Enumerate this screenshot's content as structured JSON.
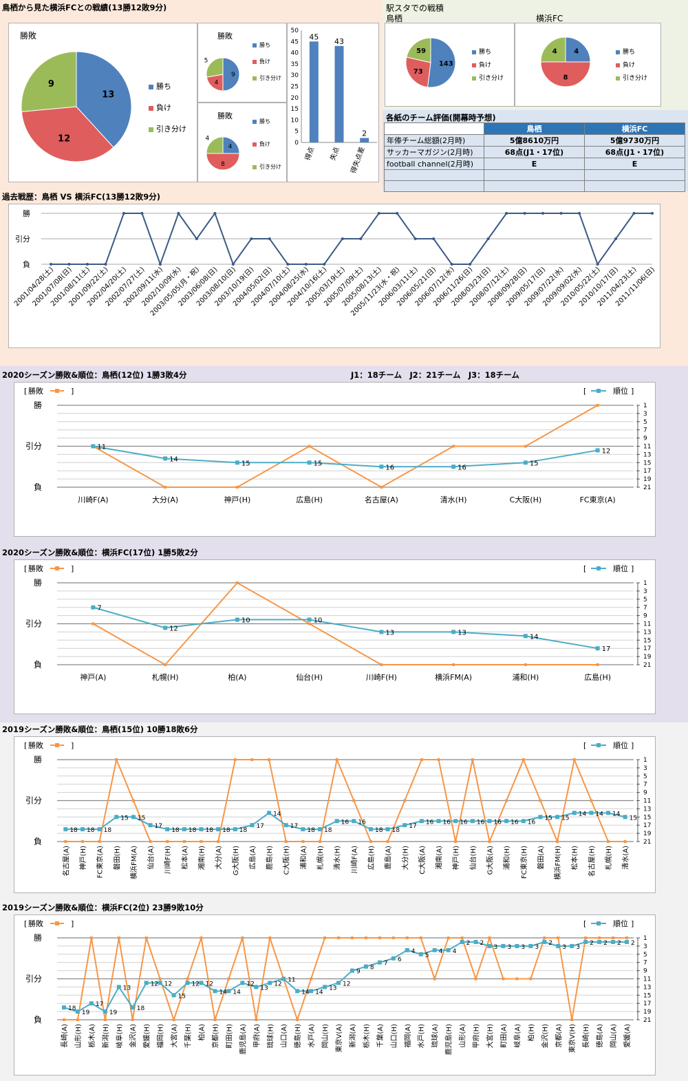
{
  "colors": {
    "win": "#4f81bd",
    "loss": "#e05d5d",
    "draw": "#9bbb59",
    "line": "#3b5a84",
    "rank": "#4bacc6",
    "result": "#f79646",
    "bar": "#4f81bd"
  },
  "h2h": {
    "title": "鳥栖から見た横浜FCとの戦績(13勝12敗9分)",
    "main_pie": {
      "title": "勝敗",
      "legend": [
        "勝ち",
        "負け",
        "引き分け"
      ]
    },
    "pie_a": {
      "title": "勝敗",
      "legend": [
        "勝ち",
        "負け",
        "引き分け"
      ]
    },
    "pie_b": {
      "title": "勝敗",
      "legend": [
        "勝ち",
        "負け",
        "引き分け"
      ]
    }
  },
  "stadium": {
    "title": "駅スタでの戦積",
    "label_left": "鳥栖",
    "label_right": "横浜FC",
    "legend": [
      "勝ち",
      "負け",
      "引き分け"
    ]
  },
  "eval": {
    "title": "各紙のチーム評価(開幕時予想)",
    "headers": [
      "",
      "鳥栖",
      "横浜FC"
    ],
    "rows": [
      [
        "年俸チーム総額(2月時)",
        "5億8610万円",
        "5億9730万円"
      ],
      [
        "サッカーマガジン(2月時)",
        "68点(J1・17位)",
        "68点(J1・17位)"
      ],
      [
        "football channel(2月時)",
        "E",
        "E"
      ],
      [
        "",
        "",
        ""
      ],
      [
        "",
        "",
        ""
      ]
    ]
  },
  "history": {
    "title": "過去戦歴：鳥栖 VS 横浜FC(13勝12敗9分)",
    "ylabels": [
      "勝",
      "引分",
      "負"
    ]
  },
  "season": {
    "s1_title": "2020シーズン勝敗&順位：鳥栖(12位) 1勝3敗4分",
    "s1_note": "J1：18チーム　J2：21チーム　J3：18チーム",
    "s2_title": "2020シーズン勝敗&順位：横浜FC(17位) 1勝5敗2分",
    "s3_title": "2019シーズン勝敗&順位：鳥栖(15位) 10勝18敗6分",
    "s4_title": "2019シーズン勝敗&順位：横浜FC(2位) 23勝9敗10分",
    "legend_left": "勝敗",
    "legend_right": "順位",
    "ylabels": [
      "勝",
      "引分",
      "負"
    ],
    "rank_ticks": [
      "1",
      "3",
      "5",
      "7",
      "9",
      "11",
      "13",
      "15",
      "17",
      "19",
      "21"
    ]
  },
  "chart_data": [
    {
      "type": "pie",
      "title": "勝敗",
      "categories": [
        "勝ち",
        "負け",
        "引き分け"
      ],
      "values": [
        13,
        12,
        9
      ]
    },
    {
      "type": "pie",
      "title": "勝敗",
      "categories": [
        "勝ち",
        "負け",
        "引き分け"
      ],
      "values": [
        9,
        4,
        5
      ]
    },
    {
      "type": "pie",
      "title": "勝敗",
      "categories": [
        "勝ち",
        "負け",
        "引き分け"
      ],
      "values": [
        4,
        8,
        4
      ]
    },
    {
      "type": "bar",
      "categories": [
        "得点",
        "失点",
        "得失点差"
      ],
      "values": [
        45,
        43,
        2
      ],
      "ylim": [
        0,
        50
      ],
      "yticks": [
        0,
        5,
        10,
        15,
        20,
        25,
        30,
        35,
        40,
        45,
        50
      ]
    },
    {
      "type": "pie",
      "title": "鳥栖",
      "categories": [
        "勝ち",
        "負け",
        "引き分け"
      ],
      "values": [
        143,
        73,
        59
      ]
    },
    {
      "type": "pie",
      "title": "横浜FC",
      "categories": [
        "勝ち",
        "負け",
        "引き分け"
      ],
      "values": [
        4,
        8,
        4
      ]
    },
    {
      "type": "line",
      "title": "過去戦歴：鳥栖 VS 横浜FC(13勝12敗9分)",
      "categories": [
        "2001/04/28(土)",
        "2001/07/08(日)",
        "2001/08/11(土)",
        "2001/09/22(土)",
        "2002/04/20(土)",
        "2002/07/27(土)",
        "2002/09/11(水)",
        "2002/10/09(水)",
        "2003/05/05(月・祝)",
        "2003/06/08(日)",
        "2003/08/10(日)",
        "2003/10/19(日)",
        "2004/05/02(日)",
        "2004/07/10(土)",
        "2004/08/25(水)",
        "2004/10/16(土)",
        "2005/03/19(土)",
        "2005/07/09(土)",
        "2005/08/13(土)",
        "2005/11/23(水・祝)",
        "2006/03/11(土)",
        "2006/05/21(日)",
        "2006/07/12(水)",
        "2006/11/26(日)",
        "2008/03/23(日)",
        "2008/07/12(土)",
        "2008/09/28(日)",
        "2009/05/17(日)",
        "2009/07/22(水)",
        "2009/09/02(水)",
        "2010/05/22(土)",
        "2010/10/17(日)",
        "2011/04/23(土)",
        "2011/11/06(日)"
      ],
      "values": [
        0,
        0,
        0,
        0,
        2,
        2,
        0,
        2,
        1,
        2,
        0,
        1,
        1,
        0,
        0,
        0,
        1,
        1,
        2,
        2,
        1,
        1,
        0,
        0,
        1,
        2,
        2,
        2,
        2,
        2,
        0,
        1,
        2,
        2
      ],
      "yticks": [
        "負",
        "引分",
        "勝"
      ]
    },
    {
      "type": "line",
      "title": "2020シーズン勝敗&順位：鳥栖(12位) 1勝3敗4分",
      "categories": [
        "川崎F(A)",
        "大分(A)",
        "神戸(H)",
        "広島(H)",
        "名古屋(A)",
        "清水(H)",
        "C大阪(H)",
        "FC東京(A)"
      ],
      "series": [
        {
          "name": "勝敗",
          "values": [
            1,
            0,
            0,
            1,
            0,
            1,
            1,
            2
          ]
        },
        {
          "name": "順位",
          "values": [
            11,
            14,
            15,
            15,
            16,
            16,
            15,
            12
          ]
        }
      ]
    },
    {
      "type": "line",
      "title": "2020シーズン勝敗&順位：横浜FC(17位) 1勝5敗2分",
      "categories": [
        "神戸(A)",
        "札幌(H)",
        "柏(A)",
        "仙台(H)",
        "川崎F(H)",
        "横浜FM(A)",
        "浦和(H)",
        "広島(H)"
      ],
      "series": [
        {
          "name": "勝敗",
          "values": [
            1,
            0,
            2,
            1,
            0,
            0,
            0,
            0
          ]
        },
        {
          "name": "順位",
          "values": [
            7,
            12,
            10,
            10,
            13,
            13,
            14,
            17
          ]
        }
      ]
    },
    {
      "type": "line",
      "title": "2019シーズン勝敗&順位：鳥栖(15位) 10勝18敗6分",
      "categories": [
        "名古屋(A)",
        "神戸(H)",
        "FC東京(A)",
        "磐田(H)",
        "横浜FM(A)",
        "仙台(A)",
        "川崎F(H)",
        "松本(A)",
        "湘南(H)",
        "大分(A)",
        "G大阪(H)",
        "広島(A)",
        "鹿島(H)",
        "C大阪(H)",
        "浦和(A)",
        "札幌(H)",
        "清水(H)",
        "川崎F(A)",
        "広島(H)",
        "鹿島(A)",
        "大分(H)",
        "C大阪(A)",
        "湘南(A)",
        "神戸(H)",
        "仙台(H)",
        "G大阪(A)",
        "浦和(H)",
        "FC東京(H)",
        "磐田(A)",
        "横浜FM(H)",
        "松本(H)",
        "名古屋(H)",
        "札幌(H)",
        "清水(A)"
      ],
      "series": [
        {
          "name": "勝敗",
          "values": [
            0,
            0,
            0,
            2,
            1,
            0,
            0,
            0,
            0,
            0,
            2,
            2,
            2,
            0,
            0,
            0,
            2,
            1,
            0,
            0,
            1,
            2,
            2,
            0,
            2,
            0,
            1,
            2,
            1,
            0,
            2,
            1,
            0,
            0
          ]
        },
        {
          "name": "順位",
          "values": [
            18,
            18,
            18,
            15,
            15,
            17,
            18,
            18,
            18,
            18,
            18,
            17,
            14,
            17,
            18,
            18,
            16,
            16,
            18,
            18,
            17,
            16,
            16,
            16,
            16,
            16,
            16,
            16,
            15,
            15,
            14,
            14,
            14,
            15
          ]
        }
      ]
    },
    {
      "type": "line",
      "title": "2019シーズン勝敗&順位：横浜FC(2位) 23勝9敗10分",
      "categories": [
        "長崎(A)",
        "山形(H)",
        "栃木(A)",
        "新潟(H)",
        "岐阜(H)",
        "金沢(A)",
        "愛媛(H)",
        "福岡(H)",
        "大宮(A)",
        "千葉(H)",
        "柏(A)",
        "京都(H)",
        "町田(H)",
        "鹿児島(A)",
        "甲府(A)",
        "琉球(H)",
        "山口(A)",
        "徳島(H)",
        "水戸(A)",
        "岡山(H)",
        "東京V(A)",
        "新潟(A)",
        "栃木(H)",
        "千葉(A)",
        "山口(H)",
        "福岡(A)",
        "水戸(H)",
        "琉球(A)",
        "鹿児島(H)",
        "山形(A)",
        "甲府(H)",
        "大宮(H)",
        "町田(A)",
        "岐阜(A)",
        "柏(H)",
        "金沢(H)",
        "京都(A)",
        "東京V(H)",
        "長崎(H)",
        "徳島(A)",
        "岡山(A)",
        "愛媛(A)"
      ],
      "series": [
        {
          "name": "勝敗",
          "values": [
            0,
            0,
            2,
            0,
            2,
            0,
            2,
            1,
            0,
            1,
            2,
            0,
            1,
            2,
            0,
            2,
            1,
            0,
            1,
            2,
            2,
            2,
            2,
            2,
            2,
            2,
            2,
            1,
            2,
            2,
            1,
            2,
            1,
            1,
            1,
            2,
            2,
            0,
            2,
            2,
            2,
            2
          ]
        },
        {
          "name": "順位",
          "values": [
            18,
            19,
            17,
            19,
            13,
            18,
            12,
            12,
            15,
            12,
            12,
            14,
            14,
            12,
            13,
            12,
            11,
            14,
            14,
            13,
            12,
            9,
            8,
            7,
            6,
            4,
            5,
            4,
            4,
            2,
            2,
            3,
            3,
            3,
            3,
            2,
            3,
            3,
            2,
            2,
            2,
            2
          ]
        }
      ]
    }
  ]
}
